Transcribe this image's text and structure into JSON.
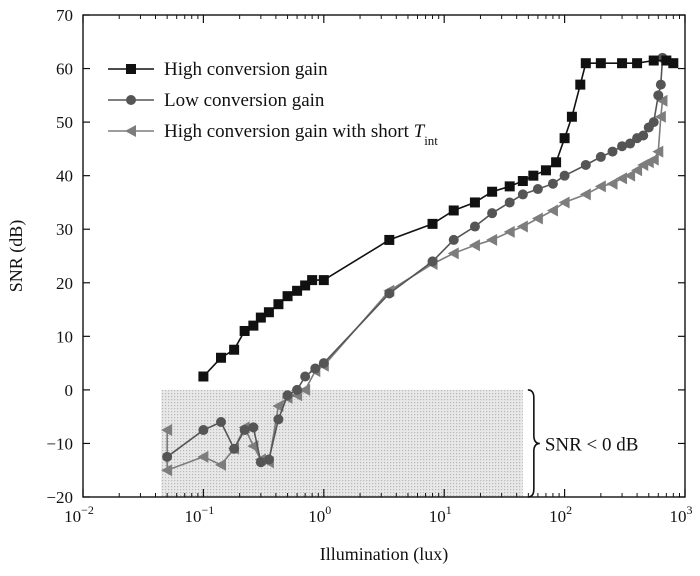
{
  "chart_data": {
    "type": "line",
    "xlabel": "Illumination (lux)",
    "ylabel": "SNR (dB)",
    "xscale": "log",
    "xlim": [
      0.01,
      1000
    ],
    "ylim": [
      -20,
      70
    ],
    "x_ticks": [
      {
        "value": 0.01,
        "base": "10",
        "exp": "−2"
      },
      {
        "value": 0.1,
        "base": "10",
        "exp": "−1"
      },
      {
        "value": 1,
        "base": "10",
        "exp": "0"
      },
      {
        "value": 10,
        "base": "10",
        "exp": "1"
      },
      {
        "value": 100,
        "base": "10",
        "exp": "2"
      },
      {
        "value": 1000,
        "base": "10",
        "exp": "3"
      }
    ],
    "y_ticks": [
      "70",
      "60",
      "50",
      "40",
      "30",
      "20",
      "10",
      "0",
      "−10",
      "−20"
    ],
    "grid": false,
    "legend_position": "top-left",
    "series": [
      {
        "name": "High conversion gain",
        "marker": "square",
        "color": "#111111",
        "points": [
          [
            0.1,
            2.5
          ],
          [
            0.14,
            6
          ],
          [
            0.18,
            7.5
          ],
          [
            0.22,
            11
          ],
          [
            0.26,
            12
          ],
          [
            0.3,
            13.5
          ],
          [
            0.35,
            14.5
          ],
          [
            0.42,
            16
          ],
          [
            0.5,
            17.5
          ],
          [
            0.6,
            18.5
          ],
          [
            0.7,
            19.5
          ],
          [
            0.8,
            20.5
          ],
          [
            1.0,
            20.5
          ],
          [
            3.5,
            28
          ],
          [
            8,
            31
          ],
          [
            12,
            33.5
          ],
          [
            18,
            35
          ],
          [
            25,
            37
          ],
          [
            35,
            38
          ],
          [
            45,
            39
          ],
          [
            55,
            40
          ],
          [
            70,
            41
          ],
          [
            85,
            42.5
          ],
          [
            100,
            47
          ],
          [
            115,
            51
          ],
          [
            135,
            57
          ],
          [
            150,
            61
          ],
          [
            200,
            61
          ],
          [
            300,
            61
          ],
          [
            400,
            61
          ],
          [
            550,
            61.5
          ],
          [
            700,
            61.5
          ],
          [
            800,
            61
          ]
        ]
      },
      {
        "name": "Low conversion gain",
        "marker": "circle",
        "color": "#555555",
        "points": [
          [
            0.05,
            -12.5
          ],
          [
            0.1,
            -7.5
          ],
          [
            0.14,
            -6
          ],
          [
            0.18,
            -11
          ],
          [
            0.22,
            -7.5
          ],
          [
            0.26,
            -7
          ],
          [
            0.3,
            -13.5
          ],
          [
            0.35,
            -13
          ],
          [
            0.42,
            -5.5
          ],
          [
            0.5,
            -1
          ],
          [
            0.6,
            0
          ],
          [
            0.7,
            2.5
          ],
          [
            0.85,
            4
          ],
          [
            1.0,
            5
          ],
          [
            3.5,
            18
          ],
          [
            8,
            24
          ],
          [
            12,
            28
          ],
          [
            18,
            30.5
          ],
          [
            25,
            33
          ],
          [
            35,
            35
          ],
          [
            45,
            36.5
          ],
          [
            60,
            37.5
          ],
          [
            80,
            38.5
          ],
          [
            100,
            40
          ],
          [
            150,
            42
          ],
          [
            200,
            43.5
          ],
          [
            250,
            44.5
          ],
          [
            300,
            45.5
          ],
          [
            350,
            46
          ],
          [
            400,
            47
          ],
          [
            450,
            47.5
          ],
          [
            500,
            49
          ],
          [
            550,
            50
          ],
          [
            600,
            55
          ],
          [
            630,
            57
          ],
          [
            650,
            62
          ]
        ]
      },
      {
        "name": "High conversion gain with short ",
        "name_italic": "T",
        "name_sub": "int",
        "marker": "triangle-left",
        "color": "#7d7d7d",
        "points": [
          [
            0.05,
            -7.5
          ],
          [
            0.05,
            -15
          ],
          [
            0.1,
            -12.5
          ],
          [
            0.14,
            -14
          ],
          [
            0.18,
            -11
          ],
          [
            0.22,
            -7
          ],
          [
            0.26,
            -10.5
          ],
          [
            0.3,
            -13
          ],
          [
            0.35,
            -13.5
          ],
          [
            0.42,
            -3
          ],
          [
            0.5,
            -1.5
          ],
          [
            0.6,
            -1
          ],
          [
            0.7,
            0
          ],
          [
            0.85,
            3.5
          ],
          [
            1.0,
            4.5
          ],
          [
            3.5,
            18.5
          ],
          [
            8,
            23.5
          ],
          [
            12,
            25.5
          ],
          [
            18,
            27
          ],
          [
            25,
            28
          ],
          [
            35,
            29.5
          ],
          [
            45,
            30.5
          ],
          [
            60,
            32
          ],
          [
            80,
            33.5
          ],
          [
            100,
            35
          ],
          [
            150,
            36.5
          ],
          [
            200,
            38
          ],
          [
            250,
            38.5
          ],
          [
            300,
            39.5
          ],
          [
            350,
            40
          ],
          [
            400,
            41
          ],
          [
            450,
            42
          ],
          [
            500,
            42.5
          ],
          [
            550,
            43
          ],
          [
            600,
            44.5
          ],
          [
            630,
            51
          ],
          [
            650,
            54
          ]
        ]
      }
    ],
    "annotations": [
      {
        "text": "SNR < 0 dB",
        "x_range": [
          0.05,
          45
        ],
        "y_range": [
          -20,
          0
        ]
      }
    ]
  }
}
